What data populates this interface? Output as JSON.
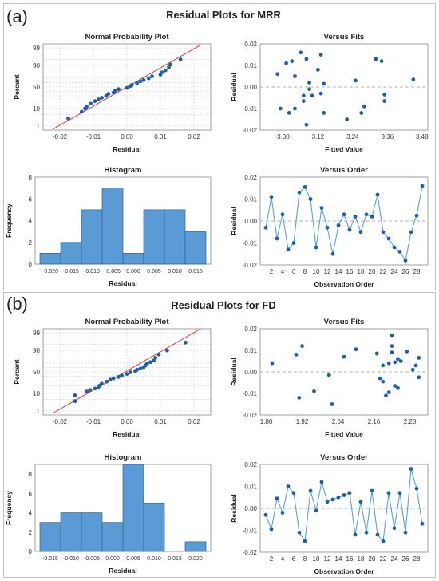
{
  "panels": [
    {
      "label": "(a)",
      "title": "Residual Plots for MRR",
      "normal_prob": {
        "title": "Normal Probability Plot",
        "xlabel": "Residual",
        "ylabel": "Percent",
        "xticks": [
          "-0.02",
          "-0.01",
          "0.00",
          "0.01",
          "0.02"
        ],
        "yticks": [
          "1",
          "10",
          "50",
          "90",
          "99"
        ]
      },
      "versus_fits": {
        "title": "Versus Fits",
        "xlabel": "Fitted Value",
        "ylabel": "Residual",
        "xticks": [
          "3.00",
          "3.12",
          "3.24",
          "3.36",
          "3.48"
        ],
        "yticks": [
          "-0.02",
          "-0.01",
          "0.00",
          "0.01",
          "0.02"
        ]
      },
      "histogram": {
        "title": "Histogram",
        "xlabel": "Residual",
        "ylabel": "Frequency",
        "xticks": [
          "-0.020",
          "-0.015",
          "-0.010",
          "-0.005",
          "0.000",
          "0.005",
          "0.010",
          "0.015"
        ],
        "yticks": [
          "0",
          "2",
          "4",
          "6",
          "8"
        ]
      },
      "versus_order": {
        "title": "Versus Order",
        "xlabel": "Observation Order",
        "ylabel": "Residual",
        "xticks": [
          "2",
          "4",
          "6",
          "8",
          "10",
          "12",
          "14",
          "16",
          "18",
          "20",
          "22",
          "24",
          "26",
          "28"
        ],
        "yticks": [
          "-0.02",
          "-0.01",
          "0.00",
          "0.01",
          "0.02"
        ]
      }
    },
    {
      "label": "(b)",
      "title": "Residual Plots for FD",
      "normal_prob": {
        "title": "Normal Probability Plot",
        "xlabel": "Residual",
        "ylabel": "Percent",
        "xticks": [
          "-0.02",
          "-0.01",
          "0.00",
          "0.01",
          "0.02"
        ],
        "yticks": [
          "1",
          "10",
          "50",
          "90",
          "99"
        ]
      },
      "versus_fits": {
        "title": "Versus Fits",
        "xlabel": "Fitted Value",
        "ylabel": "Residual",
        "xticks": [
          "1.80",
          "1.92",
          "2.04",
          "2.16",
          "2.28"
        ],
        "yticks": [
          "-0.02",
          "-0.01",
          "0.00",
          "0.01",
          "0.02"
        ]
      },
      "histogram": {
        "title": "Histogram",
        "xlabel": "Residual",
        "ylabel": "Frequency",
        "xticks": [
          "-0.015",
          "-0.010",
          "-0.005",
          "0.000",
          "0.005",
          "0.010",
          "0.015",
          "0.020"
        ],
        "yticks": [
          "0",
          "2",
          "4",
          "6",
          "8"
        ]
      },
      "versus_order": {
        "title": "Versus Order",
        "xlabel": "Observation Order",
        "ylabel": "Residual",
        "xticks": [
          "2",
          "4",
          "6",
          "8",
          "10",
          "12",
          "14",
          "16",
          "18",
          "20",
          "22",
          "24",
          "26",
          "28"
        ],
        "yticks": [
          "-0.02",
          "-0.01",
          "0.00",
          "0.01",
          "0.02"
        ]
      }
    }
  ],
  "colors": {
    "point": "#1f5fa8",
    "fit_line": "#d9534f",
    "bar_fill": "#5b9bd5",
    "bar_edge": "#3a5f85",
    "order_line": "#5aa0d8",
    "grid": "#cccccc"
  },
  "chart_data": [
    {
      "type": "scatter",
      "name": "MRR normal probability",
      "x": [
        -0.0175,
        -0.0135,
        -0.0125,
        -0.012,
        -0.0108,
        -0.0095,
        -0.0085,
        -0.0075,
        -0.0062,
        -0.0055,
        -0.004,
        -0.0035,
        -0.0025,
        0.0,
        0.001,
        0.0015,
        0.003,
        0.004,
        0.005,
        0.0065,
        0.0075,
        0.01,
        0.0105,
        0.0115,
        0.0125,
        0.013,
        0.016
      ],
      "y": [
        3,
        7,
        10,
        12,
        16,
        20,
        23,
        26,
        30,
        34,
        37,
        41,
        45,
        48,
        52,
        55,
        59,
        63,
        66,
        70,
        74,
        77,
        81,
        84,
        88,
        91,
        95
      ],
      "xlim": [
        -0.025,
        0.025
      ],
      "yscale": "probability",
      "fit_line": {
        "x": [
          -0.022,
          0.022
        ],
        "y": [
          0.6,
          99.4
        ]
      }
    },
    {
      "type": "scatter",
      "name": "MRR versus fits",
      "x": [
        2.98,
        2.99,
        3.01,
        3.02,
        3.03,
        3.04,
        3.04,
        3.06,
        3.07,
        3.07,
        3.08,
        3.08,
        3.09,
        3.09,
        3.1,
        3.12,
        3.13,
        3.13,
        3.14,
        3.14,
        3.22,
        3.25,
        3.27,
        3.28,
        3.32,
        3.34,
        3.35,
        3.35,
        3.45
      ],
      "y": [
        0.006,
        -0.01,
        0.011,
        -0.012,
        0.012,
        -0.01,
        0.005,
        0.016,
        -0.004,
        -0.0065,
        0.013,
        -0.0175,
        -0.001,
        0.002,
        -0.004,
        0.008,
        -0.003,
        0.015,
        -0.012,
        0.0015,
        -0.015,
        0.003,
        -0.012,
        -0.009,
        0.013,
        0.012,
        -0.0065,
        -0.0035,
        0.0035
      ],
      "xlim": [
        2.92,
        3.5
      ],
      "ylim": [
        -0.02,
        0.02
      ]
    },
    {
      "type": "bar",
      "name": "MRR histogram",
      "bins": [
        -0.02,
        -0.015,
        -0.01,
        -0.005,
        0.0,
        0.005,
        0.01,
        0.015
      ],
      "values": [
        1,
        2,
        5,
        7,
        1,
        5,
        5,
        3
      ],
      "ylim": [
        0,
        8
      ]
    },
    {
      "type": "line",
      "name": "MRR versus order",
      "x": [
        1,
        2,
        3,
        4,
        5,
        6,
        7,
        8,
        9,
        10,
        11,
        12,
        13,
        14,
        15,
        16,
        17,
        18,
        19,
        20,
        21,
        22,
        23,
        24,
        25,
        26,
        27,
        28,
        29
      ],
      "y": [
        -0.003,
        0.011,
        -0.008,
        0.003,
        -0.013,
        -0.01,
        0.013,
        0.0155,
        0.01,
        -0.012,
        0.006,
        -0.003,
        -0.015,
        -0.002,
        0.003,
        -0.004,
        0.002,
        -0.005,
        0.003,
        0.002,
        0.012,
        -0.005,
        -0.008,
        -0.012,
        -0.014,
        -0.018,
        -0.005,
        0.0025,
        0.016
      ],
      "xlim": [
        0,
        30
      ],
      "ylim": [
        -0.02,
        0.02
      ]
    },
    {
      "type": "scatter",
      "name": "FD normal probability",
      "x": [
        -0.0155,
        -0.0155,
        -0.012,
        -0.011,
        -0.0095,
        -0.0085,
        -0.008,
        -0.0075,
        -0.006,
        -0.005,
        -0.004,
        -0.0025,
        -0.0015,
        0.0,
        0.001,
        0.0025,
        0.003,
        0.004,
        0.005,
        0.0055,
        0.006,
        0.007,
        0.008,
        0.0085,
        0.0095,
        0.012,
        0.0175
      ],
      "y": [
        4,
        8,
        12,
        14,
        16,
        18,
        21,
        24,
        28,
        32,
        35,
        38,
        41,
        45,
        49,
        52,
        55,
        58,
        61,
        65,
        69,
        72,
        75,
        80,
        85,
        90,
        96
      ],
      "xlim": [
        -0.025,
        0.025
      ],
      "yscale": "probability",
      "fit_line": {
        "x": [
          -0.022,
          0.022
        ],
        "y": [
          0.7,
          99.5
        ]
      }
    },
    {
      "type": "scatter",
      "name": "FD versus fits",
      "x": [
        1.82,
        1.9,
        1.91,
        1.92,
        1.96,
        2.01,
        2.02,
        2.06,
        2.1,
        2.17,
        2.18,
        2.19,
        2.19,
        2.2,
        2.21,
        2.21,
        2.22,
        2.22,
        2.22,
        2.23,
        2.23,
        2.24,
        2.24,
        2.25,
        2.27,
        2.29,
        2.3,
        2.31,
        2.31
      ],
      "y": [
        0.004,
        0.008,
        -0.012,
        0.012,
        -0.009,
        -0.0015,
        -0.015,
        0.007,
        0.0105,
        0.0085,
        -0.003,
        0.003,
        -0.0045,
        -0.011,
        0.004,
        -0.0095,
        0.009,
        0.017,
        0.012,
        -0.0065,
        0.0045,
        -0.0075,
        0.006,
        0.005,
        0.0095,
        0.001,
        0.003,
        0.0065,
        -0.0025
      ],
      "xlim": [
        1.78,
        2.34
      ],
      "ylim": [
        -0.02,
        0.02
      ]
    },
    {
      "type": "bar",
      "name": "FD histogram",
      "bins": [
        -0.015,
        -0.01,
        -0.005,
        0.0,
        0.005,
        0.01,
        0.015,
        0.02
      ],
      "values": [
        3,
        4,
        4,
        3,
        9,
        5,
        0,
        1
      ],
      "ylim": [
        0,
        9
      ]
    },
    {
      "type": "line",
      "name": "FD versus order",
      "x": [
        1,
        2,
        3,
        4,
        5,
        6,
        7,
        8,
        9,
        10,
        11,
        12,
        13,
        14,
        15,
        16,
        17,
        18,
        19,
        20,
        21,
        22,
        23,
        24,
        25,
        26,
        27,
        28,
        29
      ],
      "y": [
        -0.003,
        -0.0095,
        0.0045,
        -0.002,
        0.01,
        0.007,
        -0.011,
        -0.015,
        0.008,
        -0.001,
        0.012,
        0.003,
        0.004,
        0.005,
        0.006,
        0.007,
        -0.012,
        0.003,
        -0.011,
        0.008,
        -0.012,
        -0.015,
        0.007,
        -0.009,
        0.007,
        -0.011,
        0.018,
        0.009,
        -0.007
      ],
      "xlim": [
        0,
        30
      ],
      "ylim": [
        -0.02,
        0.02
      ]
    }
  ]
}
